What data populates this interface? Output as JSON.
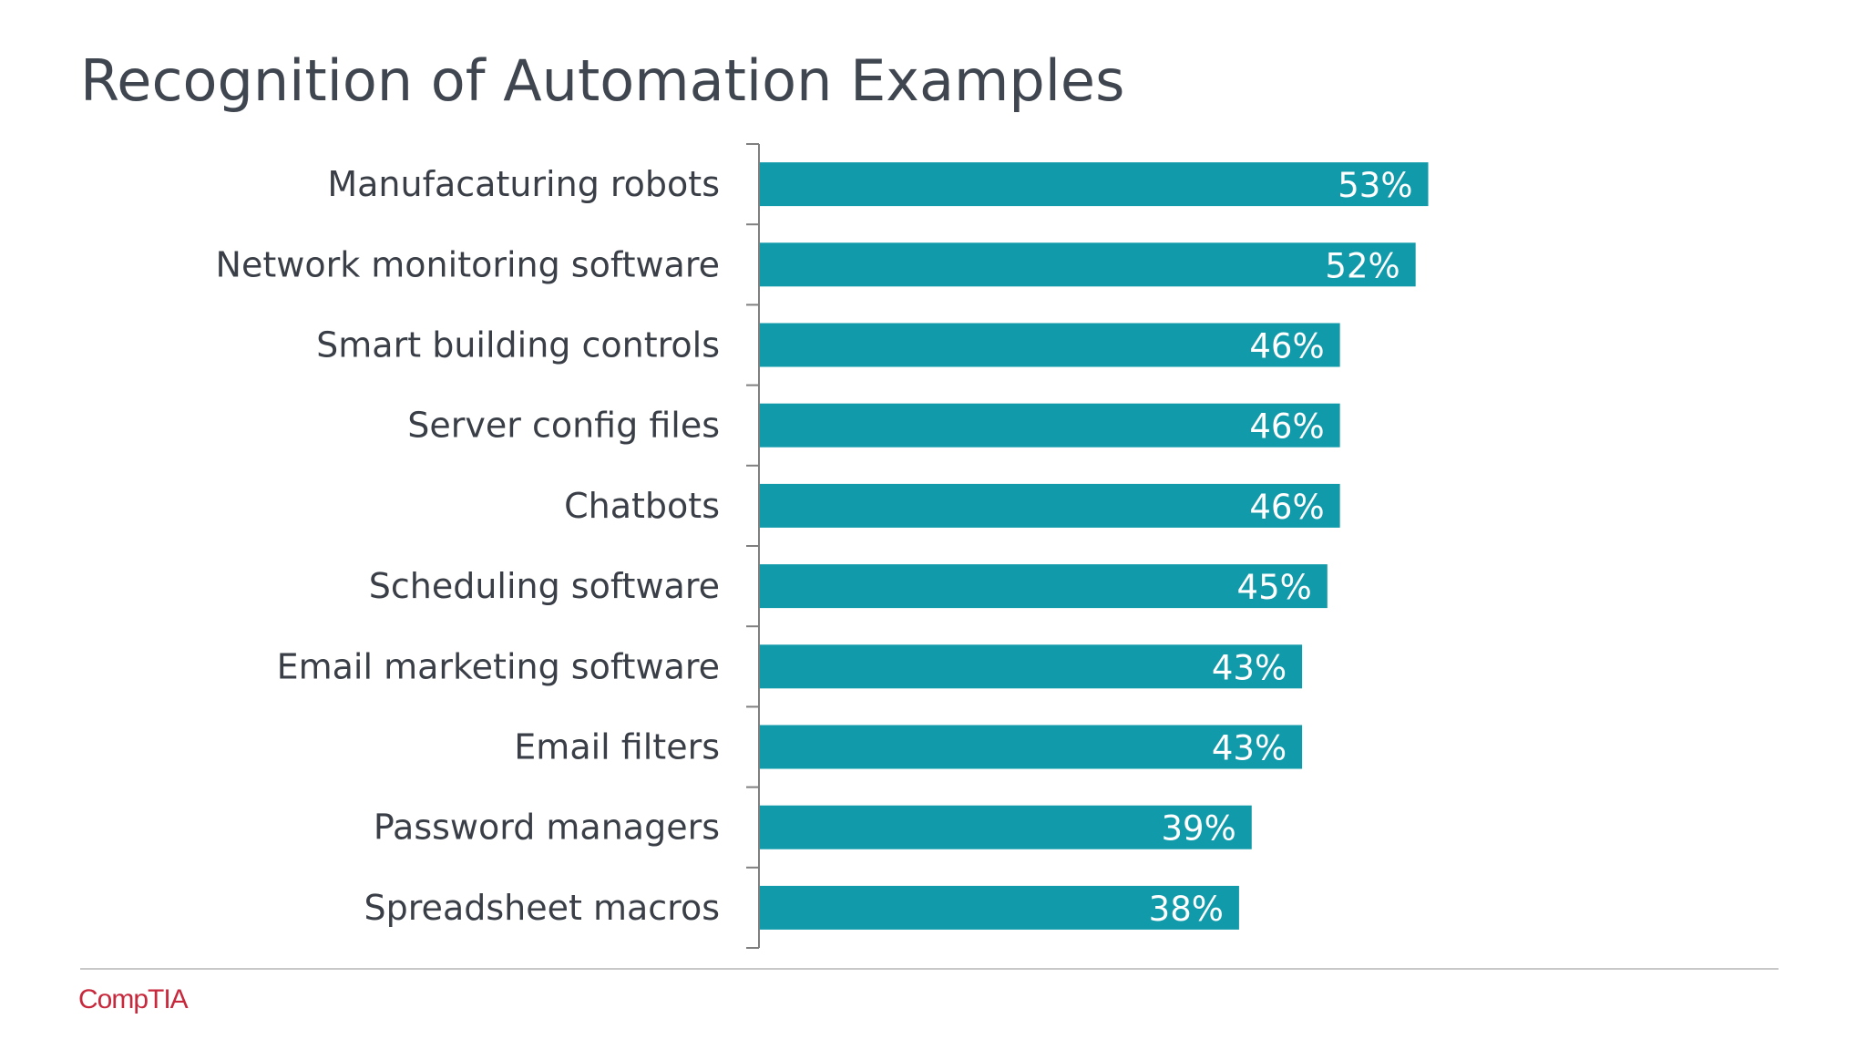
{
  "title": "Recognition of Automation Examples",
  "logo_text": "CompTIA",
  "colors": {
    "bar": "#119aaa",
    "axis": "#7f7f7f",
    "title": "#3f4650",
    "logo": "#c8283c"
  },
  "chart_data": {
    "type": "bar",
    "orientation": "horizontal",
    "categories": [
      "Manufacaturing robots",
      "Network monitoring software",
      "Smart building controls",
      "Server config files",
      "Chatbots",
      "Scheduling software",
      "Email marketing software",
      "Email filters",
      "Password managers",
      "Spreadsheet macros"
    ],
    "values": [
      53,
      52,
      46,
      46,
      46,
      45,
      43,
      43,
      39,
      38
    ],
    "value_labels": [
      "53%",
      "52%",
      "46%",
      "46%",
      "46%",
      "45%",
      "43%",
      "43%",
      "39%",
      "38%"
    ],
    "title": "Recognition of Automation Examples",
    "xlabel": "",
    "ylabel": "",
    "xlim": [
      0,
      100
    ],
    "grid": false,
    "legend": "none"
  }
}
